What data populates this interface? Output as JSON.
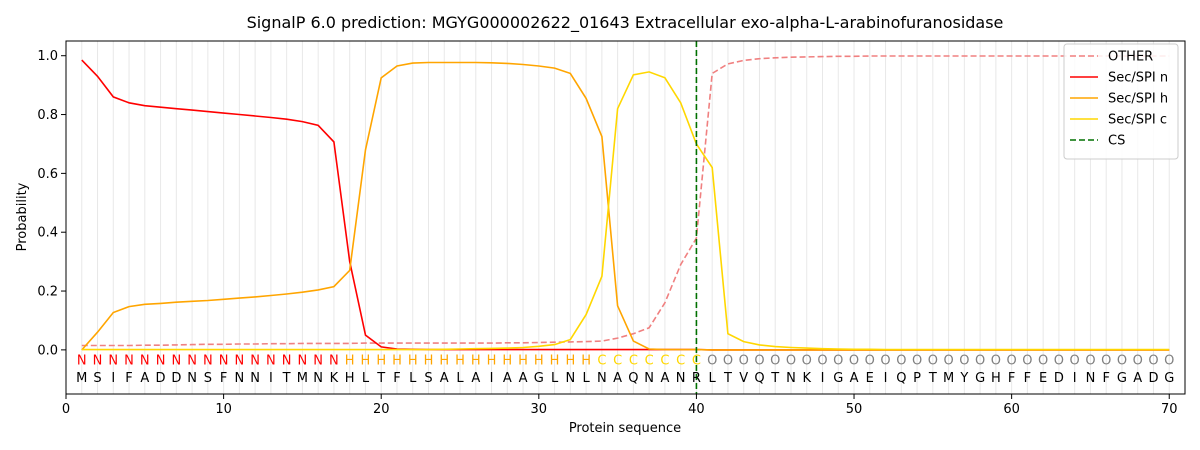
{
  "chart_data": {
    "type": "line",
    "title": "SignalP 6.0 prediction: MGYG000002622_01643 Extracellular exo-alpha-L-arabinofuranosidase",
    "xlabel": "Protein sequence",
    "ylabel": "Probability",
    "xlim": [
      0,
      71
    ],
    "ylim": [
      -0.15,
      1.05
    ],
    "x_ticks": [
      0,
      10,
      20,
      30,
      40,
      50,
      60,
      70
    ],
    "y_ticks": [
      0.0,
      0.2,
      0.4,
      0.6,
      0.8,
      1.0
    ],
    "x_tick_labels": [
      "0",
      "10",
      "20",
      "30",
      "40",
      "50",
      "60",
      "70"
    ],
    "y_tick_labels": [
      "0.0",
      "0.2",
      "0.4",
      "0.6",
      "0.8",
      "1.0"
    ],
    "grid": "vertical lines at each residue",
    "legend_position": "top-right",
    "sequence": [
      "M",
      "S",
      "I",
      "F",
      "A",
      "D",
      "D",
      "N",
      "S",
      "F",
      "N",
      "N",
      "I",
      "T",
      "M",
      "N",
      "K",
      "H",
      "L",
      "T",
      "F",
      "L",
      "S",
      "A",
      "L",
      "A",
      "I",
      "A",
      "A",
      "G",
      "L",
      "N",
      "L",
      "N",
      "A",
      "Q",
      "N",
      "A",
      "N",
      "R",
      "L",
      "T",
      "V",
      "Q",
      "T",
      "N",
      "K",
      "I",
      "G",
      "A",
      "E",
      "I",
      "Q",
      "P",
      "T",
      "M",
      "Y",
      "G",
      "H",
      "F",
      "F",
      "E",
      "D",
      "I",
      "N",
      "F",
      "G",
      "A",
      "D",
      "G"
    ],
    "labels": [
      "N",
      "N",
      "N",
      "N",
      "N",
      "N",
      "N",
      "N",
      "N",
      "N",
      "N",
      "N",
      "N",
      "N",
      "N",
      "N",
      "N",
      "H",
      "H",
      "H",
      "H",
      "H",
      "H",
      "H",
      "H",
      "H",
      "H",
      "H",
      "H",
      "H",
      "H",
      "H",
      "H",
      "C",
      "C",
      "C",
      "C",
      "C",
      "C",
      "C",
      "O",
      "O",
      "O",
      "O",
      "O",
      "O",
      "O",
      "O",
      "O",
      "O",
      "O",
      "O",
      "O",
      "O",
      "O",
      "O",
      "O",
      "O",
      "O",
      "O",
      "O",
      "O",
      "O",
      "O",
      "O",
      "O",
      "O",
      "O",
      "O",
      "O"
    ],
    "label_colors": {
      "N": "#ff0000",
      "H": "#ffa500",
      "C": "#ffd700",
      "O": "#808080"
    },
    "series": [
      {
        "name": "OTHER",
        "color": "#f08080",
        "dash": "dashed",
        "values": [
          0.015,
          0.015,
          0.015,
          0.015,
          0.016,
          0.016,
          0.017,
          0.018,
          0.019,
          0.019,
          0.02,
          0.02,
          0.021,
          0.021,
          0.022,
          0.022,
          0.022,
          0.022,
          0.023,
          0.023,
          0.023,
          0.023,
          0.023,
          0.023,
          0.023,
          0.023,
          0.023,
          0.024,
          0.024,
          0.025,
          0.026,
          0.027,
          0.028,
          0.03,
          0.04,
          0.055,
          0.075,
          0.16,
          0.29,
          0.38,
          0.94,
          0.972,
          0.984,
          0.99,
          0.993,
          0.995,
          0.996,
          0.997,
          0.998,
          0.998,
          0.999,
          0.999,
          0.999,
          0.999,
          0.999,
          0.999,
          0.999,
          0.999,
          0.999,
          0.999,
          0.999,
          0.999,
          0.999,
          0.999,
          0.999,
          0.999,
          0.999,
          0.999,
          0.999,
          0.999
        ]
      },
      {
        "name": "Sec/SPI n",
        "color": "#ff0000",
        "dash": "solid",
        "values": [
          0.985,
          0.93,
          0.86,
          0.84,
          0.83,
          0.825,
          0.82,
          0.815,
          0.81,
          0.805,
          0.8,
          0.795,
          0.79,
          0.784,
          0.776,
          0.763,
          0.707,
          0.3,
          0.05,
          0.01,
          0.003,
          0.002,
          0.001,
          0.001,
          0.001,
          0.001,
          0.001,
          0.001,
          0.001,
          0.001,
          0.001,
          0.001,
          0.001,
          0.001,
          0.001,
          0.001,
          0.001,
          0.001,
          0.001,
          0.001,
          0,
          0,
          0,
          0,
          0,
          0,
          0,
          0,
          0,
          0,
          0,
          0,
          0,
          0,
          0,
          0,
          0,
          0,
          0,
          0,
          0,
          0,
          0,
          0,
          0,
          0,
          0,
          0,
          0,
          0
        ]
      },
      {
        "name": "Sec/SPI h",
        "color": "#ffa500",
        "dash": "solid",
        "values": [
          0.0,
          0.06,
          0.127,
          0.147,
          0.155,
          0.158,
          0.162,
          0.165,
          0.168,
          0.172,
          0.176,
          0.18,
          0.185,
          0.19,
          0.196,
          0.204,
          0.215,
          0.27,
          0.68,
          0.925,
          0.965,
          0.975,
          0.977,
          0.977,
          0.977,
          0.977,
          0.976,
          0.974,
          0.97,
          0.965,
          0.958,
          0.94,
          0.855,
          0.725,
          0.15,
          0.03,
          0.003,
          0.001,
          0.001,
          0.001,
          0,
          0,
          0,
          0,
          0,
          0,
          0,
          0,
          0,
          0,
          0,
          0,
          0,
          0,
          0,
          0,
          0,
          0,
          0,
          0,
          0,
          0,
          0,
          0,
          0,
          0,
          0,
          0,
          0,
          0
        ]
      },
      {
        "name": "Sec/SPI c",
        "color": "#ffd700",
        "dash": "solid",
        "values": [
          0.001,
          0.001,
          0.001,
          0.001,
          0.001,
          0.001,
          0.001,
          0.001,
          0.001,
          0.001,
          0.001,
          0.001,
          0.001,
          0.001,
          0.001,
          0.001,
          0.001,
          0.001,
          0.001,
          0.001,
          0.001,
          0.001,
          0.001,
          0.002,
          0.003,
          0.004,
          0.005,
          0.006,
          0.008,
          0.012,
          0.018,
          0.035,
          0.12,
          0.25,
          0.82,
          0.935,
          0.945,
          0.925,
          0.84,
          0.7,
          0.62,
          0.055,
          0.028,
          0.017,
          0.011,
          0.008,
          0.006,
          0.004,
          0.003,
          0.002,
          0.002,
          0.001,
          0.001,
          0.001,
          0.001,
          0.001,
          0.001,
          0.001,
          0.001,
          0.001,
          0.001,
          0.001,
          0.001,
          0.001,
          0.001,
          0.001,
          0.001,
          0.001,
          0.001,
          0.001
        ]
      }
    ],
    "cs": {
      "name": "CS",
      "x": 40,
      "color": "#007000",
      "dash": "dashed"
    }
  }
}
